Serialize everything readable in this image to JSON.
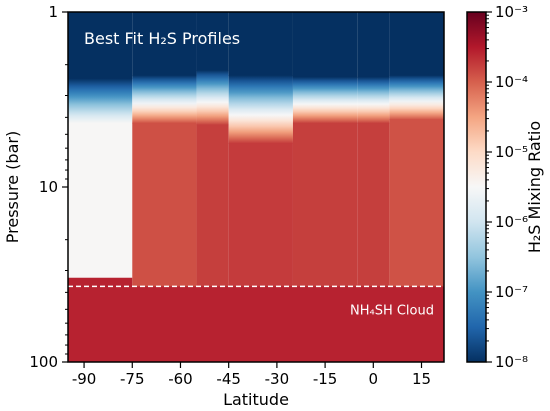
{
  "chart_data": {
    "type": "heatmap",
    "title": "Best Fit H₂S Profiles",
    "xlabel": "Latitude",
    "ylabel": "Pressure (bar)",
    "colorbar_label": "H₂S Mixing Ratio",
    "y_scale": "log",
    "y_inverted": true,
    "xlim": [
      -95,
      22
    ],
    "ylim": [
      1,
      100
    ],
    "x_ticks": [
      -90,
      -75,
      -60,
      -45,
      -30,
      -15,
      0,
      15
    ],
    "x_tick_labels": [
      "-90",
      "-75",
      "-60",
      "-45",
      "-30",
      "-15",
      "0",
      "15"
    ],
    "y_ticks": [
      1,
      10,
      100
    ],
    "y_tick_labels": [
      "1",
      "10",
      "100"
    ],
    "colorbar": {
      "scale": "log",
      "range": [
        1e-08,
        0.001
      ],
      "ticks": [
        1e-08,
        1e-07,
        1e-06,
        1e-05,
        0.0001,
        0.001
      ],
      "tick_labels": [
        "10⁻⁸",
        "10⁻⁷",
        "10⁻⁶",
        "10⁻⁵",
        "10⁻⁴",
        "10⁻³"
      ],
      "colormap": "RdBu_r",
      "colors": [
        "#053061",
        "#2166ac",
        "#4393c3",
        "#92c5de",
        "#d1e5f0",
        "#f7f7f7",
        "#fddbc7",
        "#f4a582",
        "#d6604d",
        "#b2182b",
        "#67001f"
      ]
    },
    "columns": [
      {
        "lat_min": -95,
        "lat_max": -75,
        "transition_top_bar": 2.4,
        "transition_bottom_bar": 4.3,
        "upper_mixing_ratio": 3.3e-06,
        "deep_mixing_ratio": 0.00027,
        "deep_start_bar": 33
      },
      {
        "lat_min": -75,
        "lat_max": -55,
        "transition_top_bar": 2.3,
        "transition_bottom_bar": 4.3,
        "upper_mixing_ratio": 0.00013,
        "deep_mixing_ratio": 0.00013,
        "deep_start_bar": 36
      },
      {
        "lat_min": -55,
        "lat_max": -45,
        "transition_top_bar": 2.15,
        "transition_bottom_bar": 4.4,
        "upper_mixing_ratio": 0.00017,
        "deep_mixing_ratio": 0.00017,
        "deep_start_bar": 36
      },
      {
        "lat_min": -45,
        "lat_max": -25,
        "transition_top_bar": 2.3,
        "transition_bottom_bar": 5.6,
        "upper_mixing_ratio": 0.00018,
        "deep_mixing_ratio": 0.00018,
        "deep_start_bar": 36
      },
      {
        "lat_min": -25,
        "lat_max": -5,
        "transition_top_bar": 2.35,
        "transition_bottom_bar": 4.3,
        "upper_mixing_ratio": 0.00017,
        "deep_mixing_ratio": 0.00017,
        "deep_start_bar": 36
      },
      {
        "lat_min": -5,
        "lat_max": 5,
        "transition_top_bar": 2.35,
        "transition_bottom_bar": 4.3,
        "upper_mixing_ratio": 0.00017,
        "deep_mixing_ratio": 0.00017,
        "deep_start_bar": 36
      },
      {
        "lat_min": 5,
        "lat_max": 22,
        "transition_top_bar": 2.3,
        "transition_bottom_bar": 4.1,
        "upper_mixing_ratio": 0.000125,
        "deep_mixing_ratio": 0.000125,
        "deep_start_bar": 36
      }
    ],
    "top_mixing_ratio": 1e-08,
    "deep_layer_mixing_ratio": 0.00027,
    "cloud": {
      "label": "NH₄SH Cloud",
      "pressure_bar": 37
    }
  }
}
